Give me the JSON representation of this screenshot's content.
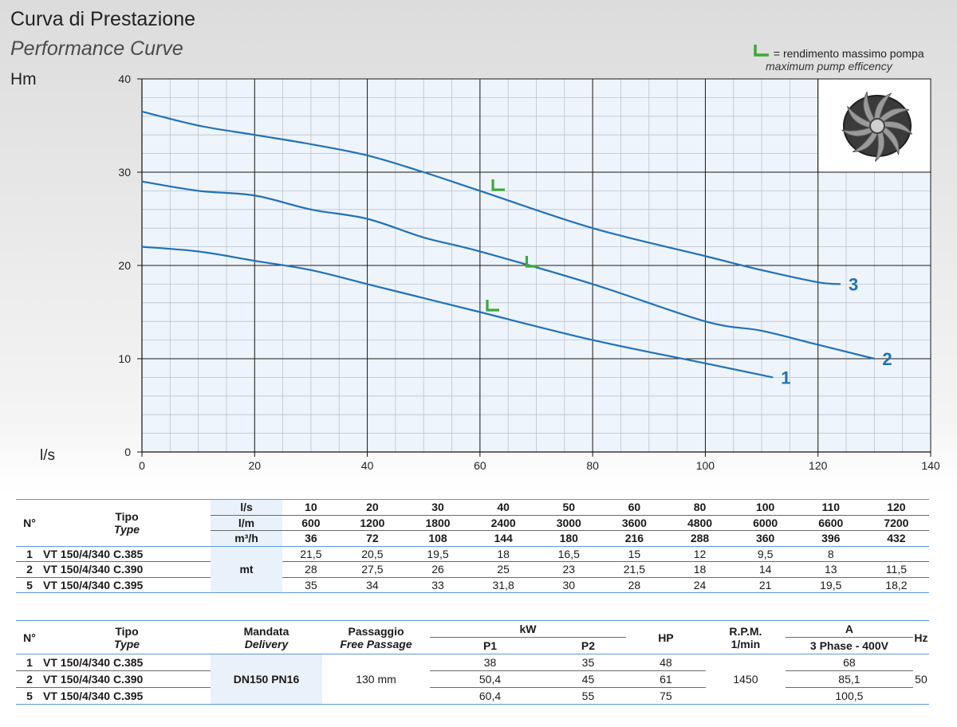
{
  "header": {
    "title_it": "Curva di Prestazione",
    "title_en": "Performance Curve",
    "legend_text_it": "rendimento massimo pompa",
    "legend_text_en": "maximum pump efficency",
    "legend_equals": "="
  },
  "chart_data": {
    "type": "line",
    "ylabel": "Hm",
    "xlabel": "l/s",
    "xlim": [
      0,
      140
    ],
    "ylim": [
      0,
      40
    ],
    "x_ticks": [
      0,
      20,
      40,
      60,
      80,
      100,
      120,
      140
    ],
    "y_ticks": [
      0,
      10,
      20,
      30,
      40
    ],
    "grid": true,
    "series": [
      {
        "name": "1",
        "x": [
          0,
          10,
          20,
          30,
          40,
          50,
          60,
          80,
          100,
          112
        ],
        "y": [
          22,
          21.5,
          20.5,
          19.5,
          18,
          16.5,
          15,
          12,
          9.5,
          8
        ],
        "bep": [
          62,
          15.3
        ]
      },
      {
        "name": "2",
        "x": [
          0,
          10,
          20,
          30,
          40,
          50,
          60,
          80,
          100,
          110,
          120,
          130
        ],
        "y": [
          29,
          28,
          27.5,
          26,
          25,
          23,
          21.5,
          18,
          14,
          13,
          11.5,
          10
        ],
        "bep": [
          69,
          20
        ]
      },
      {
        "name": "3",
        "x": [
          0,
          10,
          20,
          30,
          40,
          50,
          60,
          80,
          100,
          110,
          120,
          124
        ],
        "y": [
          36.5,
          35,
          34,
          33,
          31.8,
          30,
          28,
          24,
          21,
          19.5,
          18.2,
          18
        ],
        "bep": [
          63,
          28.2
        ]
      }
    ],
    "colors": {
      "curve": "#1f72b8",
      "bep_marker": "#3aaa35",
      "grid": "#1a1a1a",
      "plot_bg": "#eef4fb"
    }
  },
  "table1": {
    "n_label": "N°",
    "tipo": "Tipo",
    "type": "Type",
    "units": [
      "l/s",
      "l/m",
      "m³/h"
    ],
    "flow_ls": [
      "10",
      "20",
      "30",
      "40",
      "50",
      "60",
      "80",
      "100",
      "110",
      "120"
    ],
    "flow_lm": [
      "600",
      "1200",
      "1800",
      "2400",
      "3000",
      "3600",
      "4800",
      "6000",
      "6600",
      "7200"
    ],
    "flow_m3h": [
      "36",
      "72",
      "108",
      "144",
      "180",
      "216",
      "288",
      "360",
      "396",
      "432"
    ],
    "mt": "mt",
    "rows": [
      {
        "n": "1",
        "type": "VT 150/4/340 C.385",
        "values": [
          "21,5",
          "20,5",
          "19,5",
          "18",
          "16,5",
          "15",
          "12",
          "9,5",
          "8",
          ""
        ]
      },
      {
        "n": "2",
        "type": "VT 150/4/340 C.390",
        "values": [
          "28",
          "27,5",
          "26",
          "25",
          "23",
          "21,5",
          "18",
          "14",
          "13",
          "11,5"
        ]
      },
      {
        "n": "5",
        "type": "VT 150/4/340 C.395",
        "values": [
          "35",
          "34",
          "33",
          "31,8",
          "30",
          "28",
          "24",
          "21",
          "19,5",
          "18,2"
        ]
      }
    ]
  },
  "table2": {
    "n_label": "N°",
    "tipo": "Tipo",
    "type": "Type",
    "mandata": "Mandata",
    "delivery": "Delivery",
    "passaggio": "Passaggio",
    "free_passage": "Free Passage",
    "kw": "kW",
    "p1": "P1",
    "p2": "P2",
    "hp": "HP",
    "rpm": "R.P.M.",
    "rpm_unit": "1/min",
    "a": "A",
    "phase": "3 Phase - 400V",
    "hz": "Hz",
    "delivery_value": "DN150 PN16",
    "passage_value": "130 mm",
    "rpm_value": "1450",
    "hz_value": "50",
    "rows": [
      {
        "n": "1",
        "type": "VT 150/4/340 C.385",
        "p1": "38",
        "p2": "35",
        "hp": "48",
        "a": "68"
      },
      {
        "n": "2",
        "type": "VT 150/4/340 C.390",
        "p1": "50,4",
        "p2": "45",
        "hp": "61",
        "a": "85,1"
      },
      {
        "n": "5",
        "type": "VT 150/4/340 C.395",
        "p1": "60,4",
        "p2": "55",
        "hp": "75",
        "a": "100,5"
      }
    ]
  }
}
